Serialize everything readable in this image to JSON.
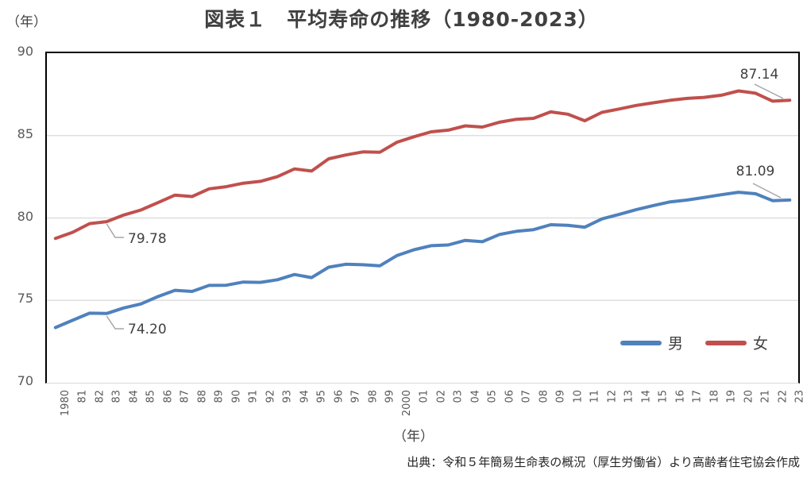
{
  "header": {
    "title": "図表１　平均寿命の推移（1980-2023）",
    "y_axis_unit": "（年）"
  },
  "chart_data": {
    "type": "line",
    "title": "図表１　平均寿命の推移（1980-2023）",
    "x": [
      "1980",
      "81",
      "82",
      "83",
      "84",
      "85",
      "86",
      "87",
      "88",
      "89",
      "90",
      "91",
      "92",
      "93",
      "94",
      "95",
      "96",
      "97",
      "98",
      "99",
      "2000",
      "01",
      "02",
      "03",
      "04",
      "05",
      "06",
      "07",
      "08",
      "09",
      "10",
      "11",
      "12",
      "13",
      "14",
      "15",
      "16",
      "17",
      "18",
      "19",
      "20",
      "21",
      "22",
      "23"
    ],
    "series": [
      {
        "name": "男",
        "color": "#4F81BD",
        "values": [
          73.35,
          73.79,
          74.22,
          74.2,
          74.54,
          74.78,
          75.23,
          75.61,
          75.54,
          75.91,
          75.92,
          76.11,
          76.09,
          76.25,
          76.57,
          76.38,
          77.01,
          77.19,
          77.16,
          77.1,
          77.72,
          78.07,
          78.32,
          78.36,
          78.64,
          78.56,
          79.0,
          79.19,
          79.29,
          79.59,
          79.55,
          79.44,
          79.94,
          80.21,
          80.5,
          80.75,
          80.98,
          81.09,
          81.25,
          81.41,
          81.56,
          81.47,
          81.05,
          81.09
        ]
      },
      {
        "name": "女",
        "color": "#C0504D",
        "values": [
          78.76,
          79.13,
          79.66,
          79.78,
          80.18,
          80.48,
          80.93,
          81.39,
          81.3,
          81.77,
          81.9,
          82.11,
          82.22,
          82.51,
          82.98,
          82.85,
          83.59,
          83.82,
          84.01,
          83.99,
          84.6,
          84.93,
          85.23,
          85.33,
          85.59,
          85.52,
          85.81,
          85.99,
          86.05,
          86.44,
          86.3,
          85.9,
          86.41,
          86.61,
          86.83,
          86.99,
          87.14,
          87.26,
          87.32,
          87.45,
          87.71,
          87.57,
          87.09,
          87.14
        ]
      }
    ],
    "ylim": [
      70,
      90
    ],
    "ytick_step": 5,
    "yticks": [
      "70",
      "75",
      "80",
      "85",
      "90"
    ],
    "xlabel": "（年）",
    "grid": "horizontal",
    "legend_position": "inside-bottom-right",
    "annotations": [
      {
        "text": "79.78",
        "series": "女",
        "x_label": "83"
      },
      {
        "text": "74.20",
        "series": "男",
        "x_label": "83"
      },
      {
        "text": "87.14",
        "series": "女",
        "x_label": "23"
      },
      {
        "text": "81.09",
        "series": "男",
        "x_label": "23"
      }
    ]
  },
  "annotations": {
    "female_1983": "79.78",
    "male_1983": "74.20",
    "female_2023": "87.14",
    "male_2023": "81.09"
  },
  "legend": {
    "male": "男",
    "female": "女"
  },
  "axis": {
    "x_title": "（年）"
  },
  "footer": {
    "source": "出典：令和５年簡易生命表の概況（厚生労働省）より高齢者住宅協会作成"
  },
  "colors": {
    "male_line": "#4F81BD",
    "female_line": "#C0504D",
    "gridline": "#D9D9D9",
    "plot_border": "#000000",
    "tick_text": "#595959",
    "annotation_text": "#404040",
    "leader_line": "#A6A6A6"
  }
}
